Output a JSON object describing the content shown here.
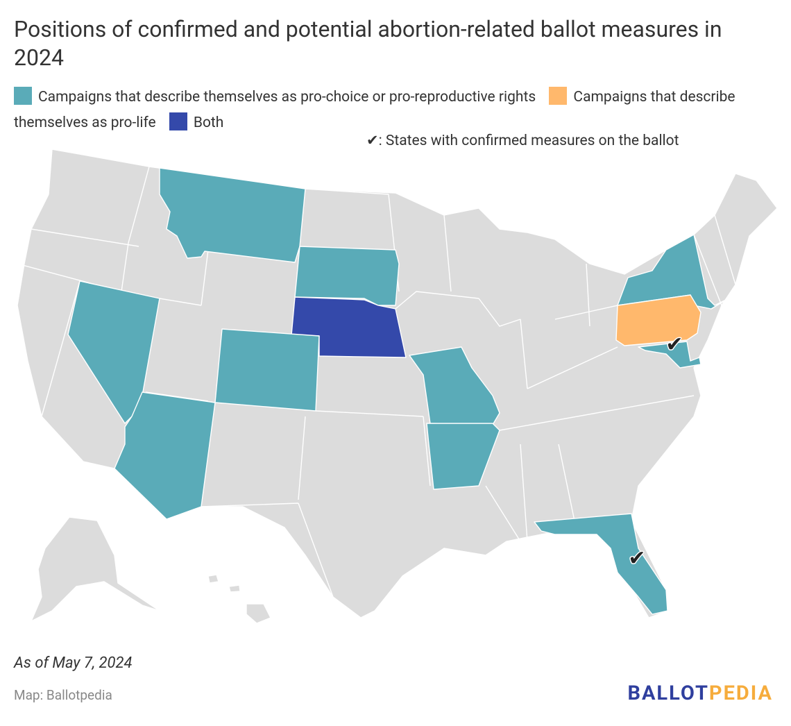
{
  "title": "Positions of confirmed and potential abortion-related ballot measures in 2024",
  "legend": {
    "items": [
      {
        "label": "Campaigns that describe themselves as pro-choice or pro-reproductive rights",
        "color": "#5aabb8"
      },
      {
        "label": "Campaigns that describe themselves as pro-life",
        "color": "#ffb86c"
      },
      {
        "label": "Both",
        "color": "#3449aa"
      }
    ]
  },
  "checkmark": "✔",
  "checkmark_label": ": States with confirmed measures on the ballot",
  "note": "As of May 7, 2024",
  "source": "Map: Ballotpedia",
  "logo": {
    "part1": "BALLOT",
    "part2": "PEDIA"
  }
}
